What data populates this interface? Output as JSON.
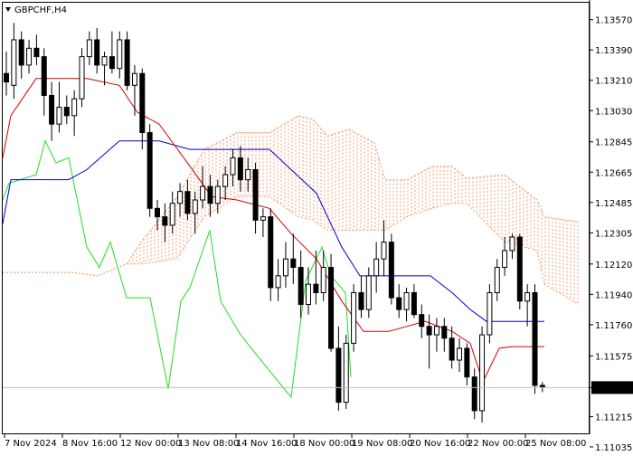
{
  "header": {
    "symbol_label": "GBPCHF,H4"
  },
  "colors": {
    "background": "#ffffff",
    "tenkan": "#d40000",
    "kijun": "#0000cc",
    "chikou": "#22dd22",
    "cloud": "#f0a070",
    "candle": "#000000",
    "price_line": "#c0c0c0",
    "price_badge_bg": "#000000",
    "price_badge_text": "#ffffff"
  },
  "chart_data": {
    "type": "candlestick",
    "title": "GBPCHF,H4",
    "indicator": "Ichimoku Kinko Hyo",
    "ylim": [
      1.1111,
      1.1367
    ],
    "y_ticks": [
      "1.13570",
      "1.13390",
      "1.13210",
      "1.13030",
      "1.12845",
      "1.12665",
      "1.12485",
      "1.12305",
      "1.12120",
      "1.11940",
      "1.11760",
      "1.11575",
      "1.11387",
      "1.11215",
      "1.11035"
    ],
    "current_price": "1.11387",
    "x_tick_labels": [
      "7 Nov 2024",
      "8 Nov 16:00",
      "12 Nov 00:00",
      "13 Nov 08:00",
      "14 Nov 16:00",
      "18 Nov 00:00",
      "19 Nov 08:00",
      "20 Nov 16:00",
      "22 Nov 00:00",
      "25 Nov 08:00"
    ],
    "candles": [
      [
        1.1325,
        1.1338,
        1.1312,
        1.132
      ],
      [
        1.1318,
        1.1355,
        1.131,
        1.1345
      ],
      [
        1.1345,
        1.135,
        1.1322,
        1.133
      ],
      [
        1.133,
        1.1345,
        1.1325,
        1.134
      ],
      [
        1.134,
        1.1348,
        1.133,
        1.1335
      ],
      [
        1.1335,
        1.134,
        1.13,
        1.1312
      ],
      [
        1.1312,
        1.132,
        1.1285,
        1.1295
      ],
      [
        1.1295,
        1.132,
        1.129,
        1.1305
      ],
      [
        1.1305,
        1.1312,
        1.1295,
        1.13
      ],
      [
        1.13,
        1.1315,
        1.1288,
        1.131
      ],
      [
        1.131,
        1.134,
        1.1305,
        1.1335
      ],
      [
        1.1335,
        1.135,
        1.133,
        1.1345
      ],
      [
        1.1345,
        1.1352,
        1.1325,
        1.133
      ],
      [
        1.133,
        1.1338,
        1.1318,
        1.1335
      ],
      [
        1.1335,
        1.135,
        1.1325,
        1.1328
      ],
      [
        1.1328,
        1.135,
        1.1322,
        1.1345
      ],
      [
        1.1345,
        1.135,
        1.1315,
        1.1318
      ],
      [
        1.1318,
        1.133,
        1.13,
        1.1325
      ],
      [
        1.1325,
        1.1328,
        1.128,
        1.129
      ],
      [
        1.129,
        1.1295,
        1.124,
        1.1245
      ],
      [
        1.1245,
        1.125,
        1.1232,
        1.124
      ],
      [
        1.124,
        1.1248,
        1.1225,
        1.1235
      ],
      [
        1.1235,
        1.1255,
        1.123,
        1.1248
      ],
      [
        1.1248,
        1.126,
        1.124,
        1.1255
      ],
      [
        1.1255,
        1.1262,
        1.1238,
        1.1242
      ],
      [
        1.1242,
        1.1255,
        1.123,
        1.125
      ],
      [
        1.125,
        1.127,
        1.1245,
        1.1258
      ],
      [
        1.1258,
        1.1265,
        1.124,
        1.1248
      ],
      [
        1.1248,
        1.1262,
        1.1242,
        1.1258
      ],
      [
        1.1258,
        1.127,
        1.125,
        1.1265
      ],
      [
        1.1265,
        1.128,
        1.1258,
        1.1275
      ],
      [
        1.1275,
        1.1282,
        1.1255,
        1.1262
      ],
      [
        1.1262,
        1.1275,
        1.1255,
        1.1268
      ],
      [
        1.1268,
        1.1272,
        1.123,
        1.1238
      ],
      [
        1.1238,
        1.1245,
        1.1228,
        1.124
      ],
      [
        1.124,
        1.1245,
        1.119,
        1.1198
      ],
      [
        1.1198,
        1.1215,
        1.119,
        1.1205
      ],
      [
        1.1205,
        1.1225,
        1.1198,
        1.1215
      ],
      [
        1.1215,
        1.123,
        1.12,
        1.121
      ],
      [
        1.121,
        1.122,
        1.118,
        1.1188
      ],
      [
        1.1188,
        1.121,
        1.1182,
        1.12
      ],
      [
        1.12,
        1.122,
        1.1188,
        1.1195
      ],
      [
        1.1195,
        1.122,
        1.119,
        1.121
      ],
      [
        1.121,
        1.1218,
        1.116,
        1.1162
      ],
      [
        1.1162,
        1.1175,
        1.1125,
        1.113
      ],
      [
        1.113,
        1.117,
        1.1126,
        1.1165
      ],
      [
        1.1165,
        1.12,
        1.116,
        1.1195
      ],
      [
        1.1195,
        1.1205,
        1.118,
        1.1185
      ],
      [
        1.1185,
        1.121,
        1.118,
        1.1205
      ],
      [
        1.1205,
        1.1225,
        1.1195,
        1.1215
      ],
      [
        1.1215,
        1.1238,
        1.1205,
        1.1225
      ],
      [
        1.1225,
        1.123,
        1.1188,
        1.1192
      ],
      [
        1.1192,
        1.12,
        1.118,
        1.1185
      ],
      [
        1.1185,
        1.1198,
        1.1178,
        1.1195
      ],
      [
        1.1195,
        1.12,
        1.118,
        1.1182
      ],
      [
        1.1182,
        1.1188,
        1.1168,
        1.1175
      ],
      [
        1.1175,
        1.1182,
        1.115,
        1.117
      ],
      [
        1.117,
        1.118,
        1.116,
        1.1175
      ],
      [
        1.1175,
        1.118,
        1.116,
        1.1168
      ],
      [
        1.1168,
        1.1175,
        1.115,
        1.1155
      ],
      [
        1.1155,
        1.1168,
        1.1148,
        1.1162
      ],
      [
        1.1162,
        1.1165,
        1.114,
        1.1145
      ],
      [
        1.1145,
        1.115,
        1.112,
        1.1125
      ],
      [
        1.1125,
        1.1175,
        1.1118,
        1.117
      ],
      [
        1.117,
        1.12,
        1.1165,
        1.1195
      ],
      [
        1.1195,
        1.1215,
        1.119,
        1.121
      ],
      [
        1.121,
        1.1228,
        1.1205,
        1.122
      ],
      [
        1.122,
        1.123,
        1.1215,
        1.1228
      ],
      [
        1.1228,
        1.123,
        1.1185,
        1.119
      ],
      [
        1.119,
        1.12,
        1.1175,
        1.1195
      ],
      [
        1.1195,
        1.12,
        1.1135,
        1.114
      ],
      [
        1.114,
        1.1142,
        1.1136,
        1.1139
      ]
    ],
    "tenkan": [
      [
        3,
        1.1275
      ],
      [
        12,
        1.13
      ],
      [
        40,
        1.1322
      ],
      [
        76,
        1.1322
      ],
      [
        96,
        1.1322
      ],
      [
        132,
        1.1318
      ],
      [
        152,
        1.1302
      ],
      [
        176,
        1.1295
      ],
      [
        210,
        1.127
      ],
      [
        234,
        1.1252
      ],
      [
        262,
        1.125
      ],
      [
        298,
        1.1245
      ],
      [
        322,
        1.123
      ],
      [
        350,
        1.1215
      ],
      [
        378,
        1.119
      ],
      [
        402,
        1.1172
      ],
      [
        430,
        1.1172
      ],
      [
        470,
        1.1178
      ],
      [
        500,
        1.1172
      ],
      [
        520,
        1.1165
      ],
      [
        534,
        1.1142
      ],
      [
        552,
        1.1162
      ],
      [
        566,
        1.1163
      ],
      [
        602,
        1.1163
      ]
    ],
    "kijun": [
      [
        3,
        1.1236
      ],
      [
        12,
        1.1262
      ],
      [
        40,
        1.1262
      ],
      [
        76,
        1.1262
      ],
      [
        96,
        1.1268
      ],
      [
        132,
        1.1285
      ],
      [
        176,
        1.1285
      ],
      [
        210,
        1.128
      ],
      [
        240,
        1.128
      ],
      [
        298,
        1.128
      ],
      [
        322,
        1.1268
      ],
      [
        350,
        1.1254
      ],
      [
        378,
        1.1222
      ],
      [
        398,
        1.1205
      ],
      [
        476,
        1.1205
      ],
      [
        500,
        1.1195
      ],
      [
        520,
        1.1185
      ],
      [
        538,
        1.1178
      ],
      [
        602,
        1.1178
      ]
    ],
    "chikou": [
      [
        3,
        1.125
      ],
      [
        10,
        1.126
      ],
      [
        40,
        1.1265
      ],
      [
        50,
        1.1285
      ],
      [
        62,
        1.1272
      ],
      [
        76,
        1.1275
      ],
      [
        96,
        1.1222
      ],
      [
        110,
        1.121
      ],
      [
        122,
        1.1225
      ],
      [
        140,
        1.1192
      ],
      [
        166,
        1.1192
      ],
      [
        186,
        1.1138
      ],
      [
        200,
        1.119
      ],
      [
        210,
        1.1198
      ],
      [
        232,
        1.1232
      ],
      [
        244,
        1.119
      ],
      [
        266,
        1.117
      ],
      [
        296,
        1.115
      ],
      [
        322,
        1.1133
      ],
      [
        338,
        1.1202
      ],
      [
        356,
        1.1222
      ],
      [
        366,
        1.1205
      ],
      [
        382,
        1.1195
      ],
      [
        388,
        1.1145
      ]
    ],
    "cloud_upper": [
      [
        3,
        1.1207
      ],
      [
        40,
        1.1207
      ],
      [
        80,
        1.1207
      ],
      [
        108,
        1.1205
      ],
      [
        140,
        1.1212
      ],
      [
        156,
        1.1225
      ],
      [
        196,
        1.1252
      ],
      [
        226,
        1.128
      ],
      [
        262,
        1.129
      ],
      [
        298,
        1.129
      ],
      [
        330,
        1.13
      ],
      [
        346,
        1.1298
      ],
      [
        362,
        1.1288
      ],
      [
        386,
        1.1292
      ],
      [
        414,
        1.1284
      ],
      [
        426,
        1.1262
      ],
      [
        450,
        1.1262
      ],
      [
        478,
        1.127
      ],
      [
        500,
        1.127
      ],
      [
        516,
        1.1263
      ],
      [
        558,
        1.1265
      ],
      [
        594,
        1.125
      ],
      [
        602,
        1.124
      ],
      [
        640,
        1.1237
      ]
    ],
    "cloud_lower": [
      [
        3,
        1.1207
      ],
      [
        40,
        1.1207
      ],
      [
        80,
        1.1207
      ],
      [
        108,
        1.1205
      ],
      [
        140,
        1.1212
      ],
      [
        156,
        1.1212
      ],
      [
        196,
        1.1215
      ],
      [
        226,
        1.124
      ],
      [
        262,
        1.1252
      ],
      [
        298,
        1.1252
      ],
      [
        330,
        1.124
      ],
      [
        346,
        1.1238
      ],
      [
        362,
        1.1232
      ],
      [
        386,
        1.1232
      ],
      [
        414,
        1.1232
      ],
      [
        426,
        1.1232
      ],
      [
        450,
        1.124
      ],
      [
        478,
        1.1245
      ],
      [
        500,
        1.1248
      ],
      [
        516,
        1.1248
      ],
      [
        558,
        1.1225
      ],
      [
        594,
        1.122
      ],
      [
        602,
        1.12
      ],
      [
        640,
        1.1188
      ]
    ]
  }
}
